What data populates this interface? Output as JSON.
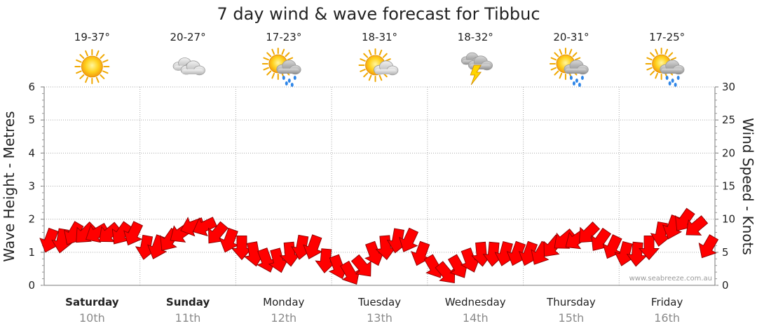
{
  "title": "7 day wind & wave forecast for Tibbuc",
  "credit": "www.seabreeze.com.au",
  "days": [
    {
      "day": "Saturday",
      "date": "10th",
      "temp": "19-37°",
      "icon": "sunny-icon",
      "bold": true
    },
    {
      "day": "Sunday",
      "date": "11th",
      "temp": "20-27°",
      "icon": "cloudy-icon",
      "bold": true
    },
    {
      "day": "Monday",
      "date": "12th",
      "temp": "17-23°",
      "icon": "sun-cloud-rain-icon",
      "bold": false
    },
    {
      "day": "Tuesday",
      "date": "13th",
      "temp": "18-31°",
      "icon": "partly-cloudy-icon",
      "bold": false
    },
    {
      "day": "Wednesday",
      "date": "14th",
      "temp": "18-32°",
      "icon": "thunderstorm-icon",
      "bold": false
    },
    {
      "day": "Thursday",
      "date": "15th",
      "temp": "20-31°",
      "icon": "sun-cloud-rain-icon",
      "bold": false
    },
    {
      "day": "Friday",
      "date": "16th",
      "temp": "17-25°",
      "icon": "sun-cloud-rain-icon",
      "bold": false
    }
  ],
  "colors": {
    "arrow": "#ff0000",
    "arrow_outline": "#8b0000",
    "grid": "#aaaaaa"
  },
  "chart_data": {
    "type": "line",
    "title": "7 day wind & wave forecast for Tibbuc",
    "ylabel": "Wave Height - Metres",
    "y2label": "Wind Speed - Knots",
    "ylim": [
      0,
      6
    ],
    "y2lim": [
      0,
      30
    ],
    "yticks": [
      0,
      1,
      2,
      3,
      4,
      5,
      6
    ],
    "y2ticks": [
      0,
      5,
      10,
      15,
      20,
      25,
      30
    ],
    "grid": true,
    "categories": [
      "Saturday 10th",
      "Sunday 11th",
      "Monday 12th",
      "Tuesday 13th",
      "Wednesday 14th",
      "Thursday 15th",
      "Friday 16th"
    ],
    "series": [
      {
        "name": "Wind Speed - Knots",
        "unit": "knots",
        "values_per_3h": [
          7,
          7,
          8,
          8,
          8,
          8,
          8,
          8,
          6,
          6,
          7,
          8,
          9,
          9,
          8,
          7,
          6,
          5,
          4,
          4,
          5,
          6,
          6,
          4,
          3,
          2,
          3,
          5,
          6,
          7,
          7,
          5,
          3,
          2,
          3,
          4,
          5,
          5,
          5,
          5,
          5,
          5,
          6,
          7,
          7,
          8,
          7,
          6,
          5,
          5,
          6,
          8,
          9,
          10,
          9,
          6
        ]
      }
    ]
  }
}
